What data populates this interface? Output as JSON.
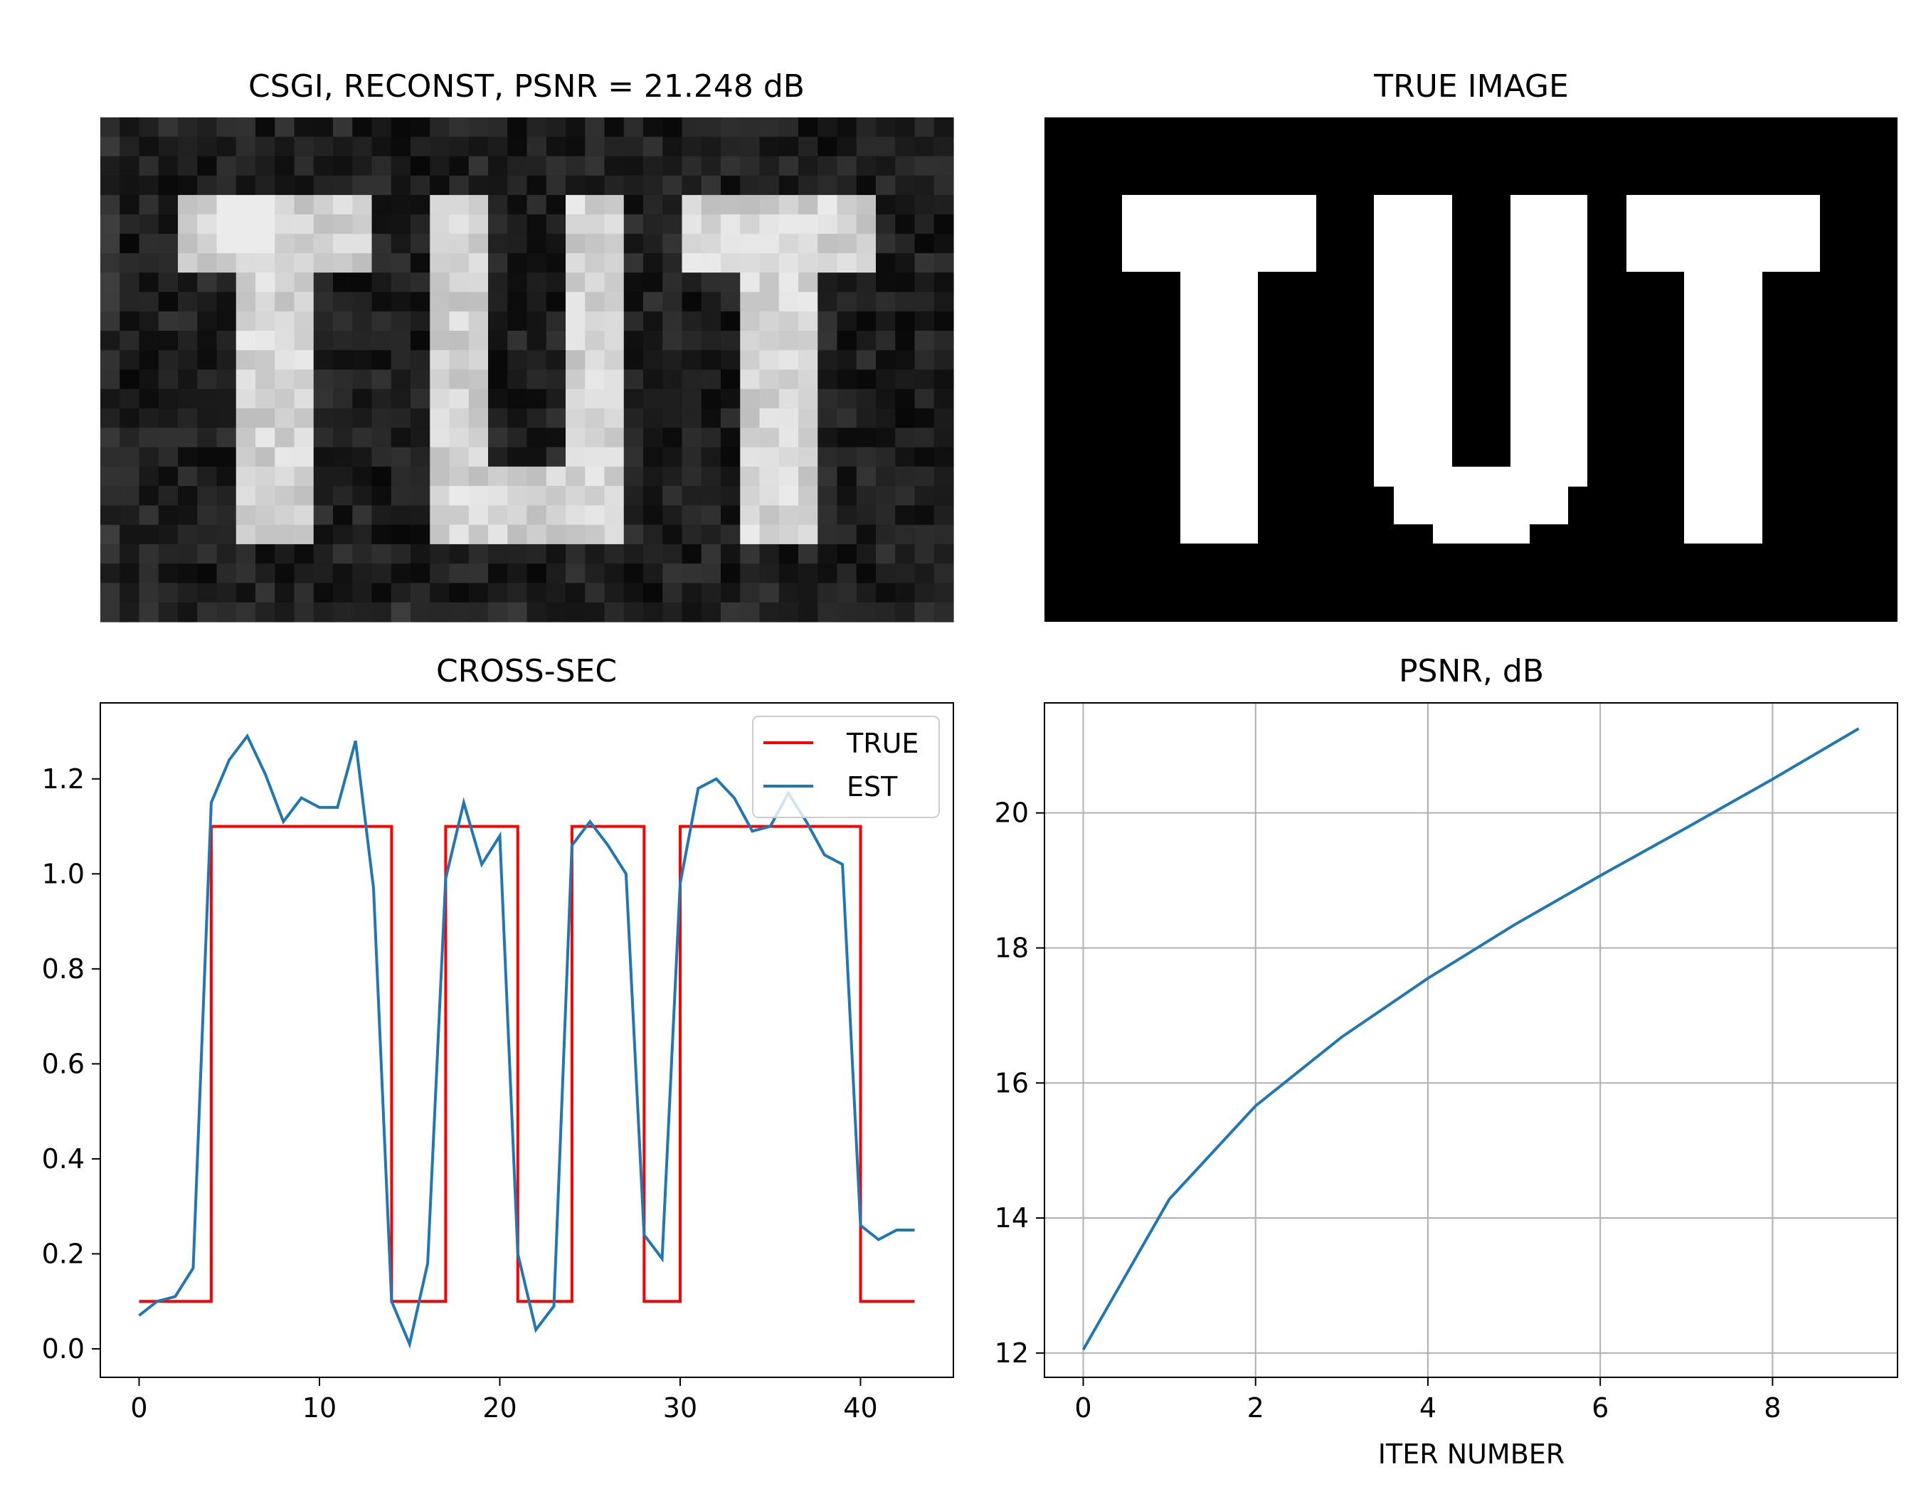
{
  "figure": {
    "panels": [
      {
        "title": "CSGI, RECONST, PSNR = 21.248 dB"
      },
      {
        "title": "TRUE IMAGE"
      },
      {
        "title": "CROSS-SEC"
      },
      {
        "title": "PSNR, dB"
      }
    ]
  },
  "chart_data": [
    {
      "type": "heatmap",
      "title": "CSGI, RECONST, PSNR = 21.248 dB",
      "colormap": "gray",
      "image_text": "TUT",
      "grid_cols": 44,
      "grid_rows": 26
    },
    {
      "type": "heatmap",
      "title": "TRUE IMAGE",
      "colormap": "gray",
      "image_text": "TUT"
    },
    {
      "type": "line",
      "title": "CROSS-SEC",
      "xlabel": "",
      "ylabel": "",
      "xlim": [
        -2.15,
        45.15
      ],
      "ylim": [
        -0.06,
        1.36
      ],
      "xticks": [
        0,
        10,
        20,
        30,
        40
      ],
      "yticks": [
        0.0,
        0.2,
        0.4,
        0.6,
        0.8,
        1.0,
        1.2
      ],
      "ytick_labels": [
        "0.0",
        "0.2",
        "0.4",
        "0.6",
        "0.8",
        "1.0",
        "1.2"
      ],
      "grid": false,
      "legend_position": "upper right",
      "series": [
        {
          "name": "TRUE",
          "color": "#ff0000",
          "x": [
            0,
            1,
            2,
            3,
            4,
            5,
            6,
            7,
            8,
            9,
            10,
            11,
            12,
            13,
            14,
            15,
            16,
            17,
            18,
            19,
            20,
            21,
            22,
            23,
            24,
            25,
            26,
            27,
            28,
            29,
            30,
            31,
            32,
            33,
            34,
            35,
            36,
            37,
            38,
            39,
            40,
            41,
            42,
            43
          ],
          "values": [
            0.1,
            0.1,
            0.1,
            0.1,
            1.1,
            1.1,
            1.1,
            1.1,
            1.1,
            1.1,
            1.1,
            1.1,
            1.1,
            1.1,
            0.1,
            0.1,
            0.1,
            1.1,
            1.1,
            1.1,
            1.1,
            0.1,
            0.1,
            0.1,
            1.1,
            1.1,
            1.1,
            1.1,
            0.1,
            0.1,
            1.1,
            1.1,
            1.1,
            1.1,
            1.1,
            1.1,
            1.1,
            1.1,
            1.1,
            1.1,
            0.1,
            0.1,
            0.1,
            0.1
          ],
          "drawstyle": "steps-post"
        },
        {
          "name": "EST",
          "color": "#1f77b4",
          "x": [
            0,
            1,
            2,
            3,
            4,
            5,
            6,
            7,
            8,
            9,
            10,
            11,
            12,
            13,
            14,
            15,
            16,
            17,
            18,
            19,
            20,
            21,
            22,
            23,
            24,
            25,
            26,
            27,
            28,
            29,
            30,
            31,
            32,
            33,
            34,
            35,
            36,
            37,
            38,
            39,
            40,
            41,
            42,
            43
          ],
          "values": [
            0.07,
            0.1,
            0.11,
            0.17,
            1.15,
            1.24,
            1.29,
            1.21,
            1.11,
            1.16,
            1.14,
            1.14,
            1.28,
            0.97,
            0.1,
            0.01,
            0.18,
            0.99,
            1.15,
            1.02,
            1.08,
            0.2,
            0.04,
            0.09,
            1.06,
            1.11,
            1.06,
            1.0,
            0.24,
            0.19,
            0.98,
            1.18,
            1.2,
            1.16,
            1.09,
            1.1,
            1.17,
            1.11,
            1.04,
            1.02,
            0.26,
            0.23,
            0.25,
            0.25
          ]
        }
      ]
    },
    {
      "type": "line",
      "title": "PSNR, dB",
      "xlabel": "ITER NUMBER",
      "ylabel": "",
      "xlim": [
        -0.45,
        9.45
      ],
      "ylim": [
        11.64,
        21.63
      ],
      "xticks": [
        0,
        2,
        4,
        6,
        8
      ],
      "yticks": [
        12,
        14,
        16,
        18,
        20
      ],
      "grid": true,
      "series": [
        {
          "color": "#1f77b4",
          "x": [
            0,
            1,
            2,
            3,
            4,
            5,
            6,
            7,
            8,
            9
          ],
          "values": [
            12.05,
            14.28,
            15.66,
            16.68,
            17.55,
            18.34,
            19.07,
            19.78,
            20.5,
            21.25
          ]
        }
      ]
    }
  ]
}
